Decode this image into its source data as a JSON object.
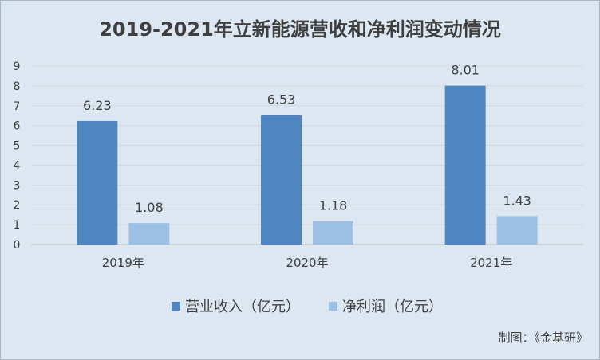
{
  "chart_data": {
    "type": "bar",
    "title": "2019-2021年立新能源营收和净利润变动情况",
    "categories": [
      "2019年",
      "2020年",
      "2021年"
    ],
    "series": [
      {
        "name": "营业收入（亿元）",
        "values": [
          6.23,
          6.53,
          8.01
        ],
        "color": "#4f86c1"
      },
      {
        "name": "净利润（亿元）",
        "values": [
          1.08,
          1.18,
          1.43
        ],
        "color": "#9dbfe3"
      }
    ],
    "ylim": [
      0,
      9
    ],
    "yticks": [
      "0",
      "1",
      "2",
      "3",
      "4",
      "5",
      "6",
      "7",
      "8",
      "9"
    ],
    "grid": true,
    "legend_position": "bottom"
  },
  "credit": "制图：《金基研》"
}
